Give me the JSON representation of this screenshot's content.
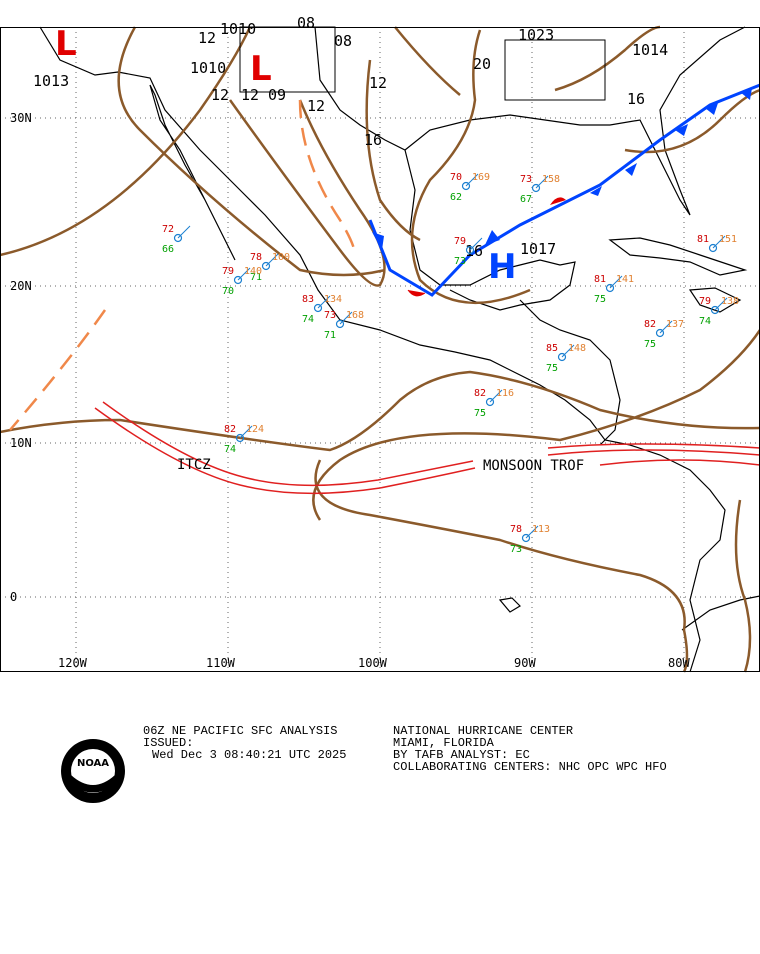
{
  "map": {
    "lat_labels": [
      "30N",
      "20N",
      "10N",
      "0"
    ],
    "lon_labels": [
      "120W",
      "110W",
      "100W",
      "90W",
      "80W"
    ],
    "isobar_labels": [
      "1013",
      "12",
      "1010",
      "08",
      "1010",
      "12",
      "12",
      "09",
      "08",
      "12",
      "12",
      "16",
      "1023",
      "20",
      "1014",
      "16",
      "16",
      "1017"
    ],
    "systems": [
      "L",
      "L",
      "H"
    ],
    "features": [
      "ITCZ",
      "MONSOON TROF"
    ],
    "stations": [
      {
        "temp": "72",
        "dew": "66"
      },
      {
        "temp": "78",
        "dew": "71",
        "press": "100"
      },
      {
        "temp": "79",
        "dew": "70",
        "press": "140"
      },
      {
        "temp": "83",
        "dew": "74",
        "press": "134"
      },
      {
        "temp": "73",
        "dew": "71",
        "press": "168"
      },
      {
        "temp": "82",
        "dew": "74",
        "press": "124"
      },
      {
        "temp": "82",
        "dew": "75",
        "press": "137"
      },
      {
        "temp": "79",
        "dew": "74",
        "press": "138"
      },
      {
        "temp": "81",
        "dew": "75",
        "press": "141"
      },
      {
        "temp": "78",
        "dew": "73",
        "press": "113"
      },
      {
        "temp": "82",
        "dew": "75",
        "press": "116"
      },
      {
        "temp": "70",
        "dew": "62",
        "press": "169"
      },
      {
        "temp": "73",
        "dew": "67",
        "press": "158"
      },
      {
        "temp": "79",
        "dew": "73"
      },
      {
        "temp": "85",
        "dew": "75",
        "press": "148"
      },
      {
        "temp": "81",
        "press": "151"
      }
    ]
  },
  "footer": {
    "product": "06Z NE PACIFIC SFC ANALYSIS",
    "issued": "ISSUED:",
    "time": "Wed Dec 3 08:40:21 UTC 2025",
    "center": "NATIONAL HURRICANE CENTER",
    "location": "MIAMI, FLORIDA",
    "analyst": "BY TAFB ANALYST: EC",
    "collab": "COLLABORATING CENTERS: NHC OPC WPC HFO",
    "logo": "NOAA"
  }
}
